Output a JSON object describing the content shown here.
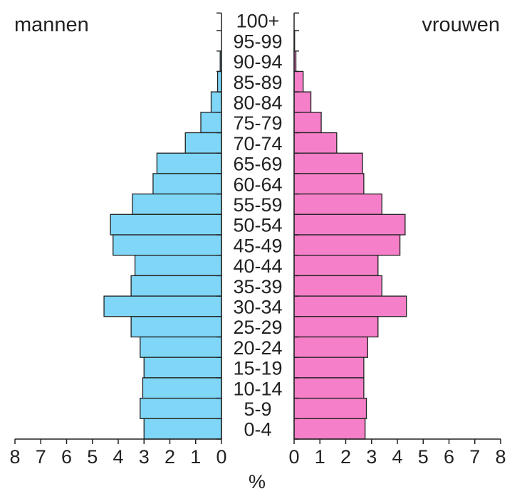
{
  "chart_data": {
    "type": "bar",
    "orientation": "horizontal",
    "subtype": "population-pyramid",
    "left_label": "mannen",
    "right_label": "vrouwen",
    "xlabel": "%",
    "xlim": [
      0,
      8
    ],
    "x_ticks": [
      "8",
      "7",
      "6",
      "5",
      "4",
      "3",
      "2",
      "1",
      "0",
      "1",
      "2",
      "3",
      "4",
      "5",
      "6",
      "7",
      "8"
    ],
    "categories": [
      "100+",
      "95-99",
      "90-94",
      "85-89",
      "80-84",
      "75-79",
      "70-74",
      "65-69",
      "60-64",
      "55-59",
      "50-54",
      "45-49",
      "40-44",
      "35-39",
      "30-34",
      "25-29",
      "20-24",
      "15-19",
      "10-14",
      "5-9",
      "0-4"
    ],
    "series": [
      {
        "name": "mannen",
        "color": "#7fd6f6",
        "values": [
          0,
          0,
          0.05,
          0.15,
          0.4,
          0.8,
          1.4,
          2.5,
          2.65,
          3.45,
          4.3,
          4.2,
          3.35,
          3.5,
          4.55,
          3.5,
          3.15,
          3.0,
          3.05,
          3.15,
          3.0
        ]
      },
      {
        "name": "vrouwen",
        "color": "#f57fc8",
        "values": [
          0,
          0.02,
          0.07,
          0.35,
          0.65,
          1.05,
          1.65,
          2.65,
          2.7,
          3.4,
          4.3,
          4.1,
          3.25,
          3.4,
          4.35,
          3.25,
          2.85,
          2.7,
          2.7,
          2.8,
          2.75
        ]
      }
    ],
    "grid": false,
    "legend": "none"
  }
}
